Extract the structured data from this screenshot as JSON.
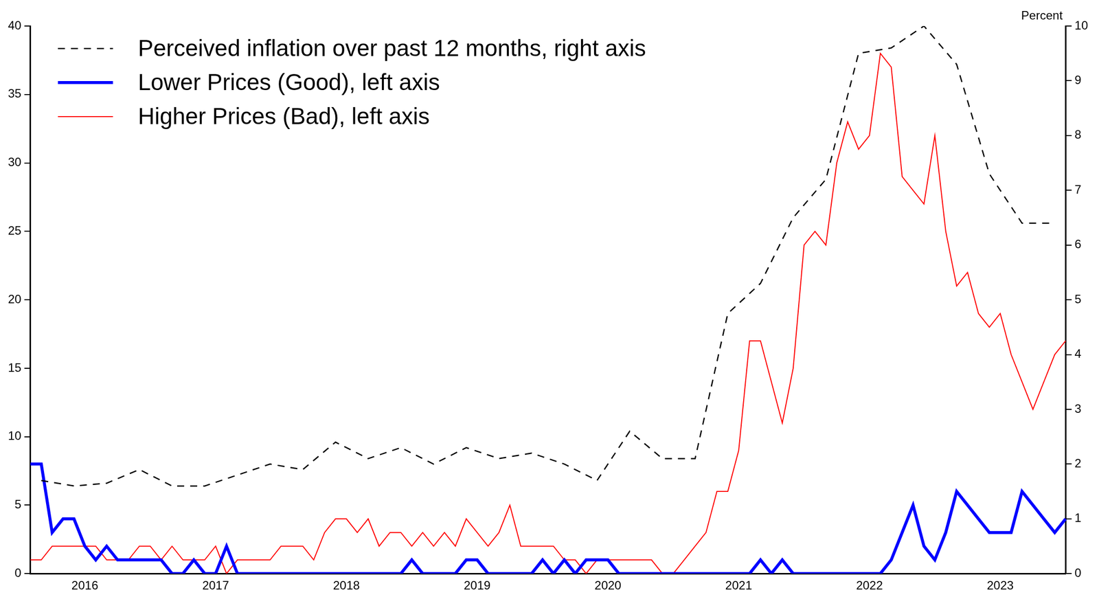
{
  "chart_data": {
    "type": "line",
    "y2label": "Percent",
    "categories": [
      null,
      null,
      null,
      null,
      null,
      "2016",
      null,
      null,
      null,
      null,
      null,
      null,
      null,
      null,
      null,
      null,
      null,
      "2017",
      null,
      null,
      null,
      null,
      null,
      null,
      null,
      null,
      null,
      null,
      null,
      "2018",
      null,
      null,
      null,
      null,
      null,
      null,
      null,
      null,
      null,
      null,
      null,
      "2019",
      null,
      null,
      null,
      null,
      null,
      null,
      null,
      null,
      null,
      null,
      null,
      "2020",
      null,
      null,
      null,
      null,
      null,
      null,
      null,
      null,
      null,
      null,
      null,
      "2021",
      null,
      null,
      null,
      null,
      null,
      null,
      null,
      null,
      null,
      null,
      null,
      "2022",
      null,
      null,
      null,
      null,
      null,
      null,
      null,
      null,
      null,
      null,
      null,
      "2023",
      null,
      null,
      null,
      null,
      null,
      null
    ],
    "series": [
      {
        "name": "Perceived inflation over past 12 months, right axis",
        "color": "#000000",
        "line_style": "dashed",
        "axis": "y2",
        "values": [
          null,
          1.7,
          null,
          null,
          1.6,
          null,
          null,
          1.65,
          null,
          null,
          1.9,
          null,
          null,
          1.6,
          null,
          null,
          1.6,
          null,
          null,
          1.8,
          null,
          null,
          2.0,
          null,
          null,
          1.9,
          null,
          null,
          2.4,
          null,
          null,
          2.1,
          null,
          null,
          2.3,
          null,
          null,
          2.0,
          null,
          null,
          2.3,
          null,
          null,
          2.1,
          null,
          null,
          2.2,
          null,
          null,
          2.0,
          null,
          null,
          1.7,
          null,
          null,
          2.6,
          null,
          null,
          2.1,
          null,
          null,
          2.1,
          null,
          null,
          4.75,
          null,
          null,
          5.3,
          null,
          null,
          6.5,
          null,
          null,
          7.2,
          null,
          null,
          9.5,
          null,
          null,
          9.6,
          null,
          null,
          10,
          null,
          null,
          9.3,
          null,
          null,
          7.3,
          null,
          null,
          6.4,
          null,
          null,
          6.4,
          null
        ]
      },
      {
        "name": "Lower Prices (Good), left axis",
        "color": "#0000ff",
        "line_style": "solid",
        "values": [
          8,
          8,
          3,
          4,
          4,
          2,
          1,
          2,
          1,
          1,
          1,
          1,
          1,
          0,
          0,
          1,
          0,
          0,
          2,
          0,
          0,
          0,
          0,
          0,
          0,
          0,
          0,
          0,
          0,
          0,
          0,
          0,
          0,
          0,
          0,
          1,
          0,
          0,
          0,
          0,
          1,
          1,
          0,
          0,
          0,
          0,
          0,
          1,
          0,
          1,
          0,
          1,
          1,
          1,
          0,
          0,
          0,
          0,
          0,
          0,
          0,
          0,
          0,
          0,
          0,
          0,
          0,
          1,
          0,
          1,
          0,
          0,
          0,
          0,
          0,
          0,
          0,
          0,
          0,
          1,
          3,
          5,
          2,
          1,
          3,
          6,
          5,
          4,
          3,
          3,
          3,
          6,
          5,
          4,
          3,
          4
        ]
      },
      {
        "name": "Higher Prices (Bad), left axis",
        "color": "#ff0000",
        "line_style": "solid",
        "values": [
          1,
          1,
          2,
          2,
          2,
          2,
          2,
          1,
          1,
          1,
          2,
          2,
          1,
          2,
          1,
          1,
          1,
          2,
          0,
          1,
          1,
          1,
          1,
          2,
          2,
          2,
          1,
          3,
          4,
          4,
          3,
          4,
          2,
          3,
          3,
          2,
          3,
          2,
          3,
          2,
          4,
          3,
          2,
          3,
          5,
          2,
          2,
          2,
          2,
          1,
          1,
          0,
          1,
          1,
          1,
          1,
          1,
          1,
          0,
          0,
          1,
          2,
          3,
          6,
          6,
          9,
          17,
          17,
          14,
          11,
          15,
          24,
          25,
          24,
          30,
          33,
          31,
          32,
          38,
          37,
          29,
          28,
          27,
          32,
          25,
          21,
          22,
          19,
          18,
          19,
          16,
          14,
          12,
          14,
          16,
          17
        ]
      }
    ],
    "ylim": [
      0,
      40
    ],
    "yticks": [
      0,
      5,
      10,
      15,
      20,
      25,
      30,
      35,
      40
    ],
    "y2lim": [
      0,
      10
    ],
    "y2ticks": [
      0,
      1,
      2,
      3,
      4,
      5,
      6,
      7,
      8,
      9,
      10
    ],
    "grid": false,
    "legend": "upper left"
  }
}
